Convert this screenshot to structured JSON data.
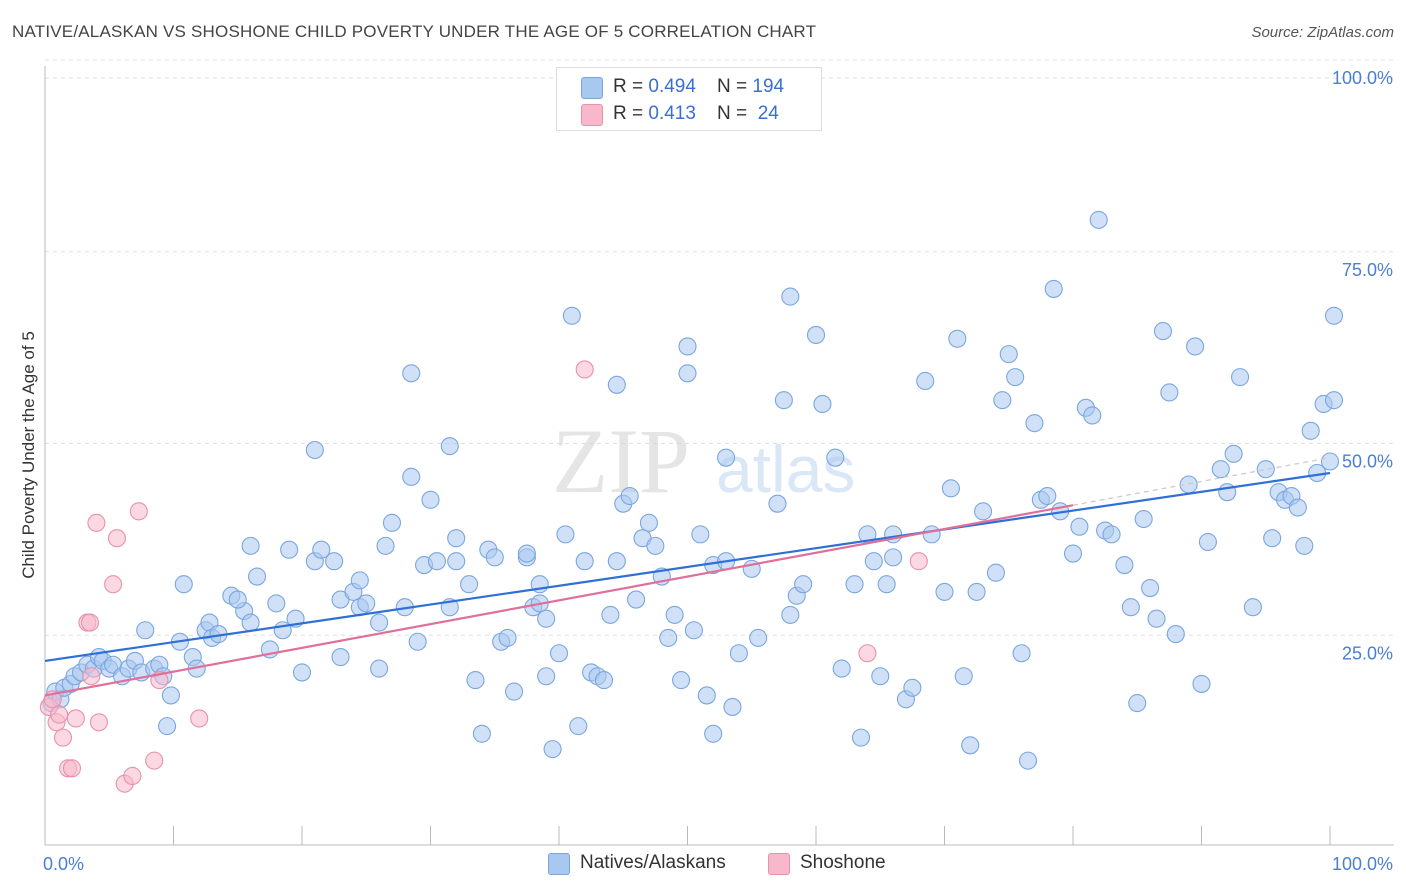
{
  "title": "NATIVE/ALASKAN VS SHOSHONE CHILD POVERTY UNDER THE AGE OF 5 CORRELATION CHART",
  "source": "Source: ZipAtlas.com",
  "watermark": {
    "zip": "ZIP",
    "atlas": "atlas"
  },
  "legend_top": [
    {
      "r_label": "R = ",
      "r_value": "0.494",
      "n_label": "N = ",
      "n_value": "194",
      "color": "#a9c8f0",
      "stroke": "#7aa6e0"
    },
    {
      "r_label": "R = ",
      "r_value": "0.413",
      "n_label": "N = ",
      "n_value": " 24",
      "color": "#f7b8cb",
      "stroke": "#e891ab"
    }
  ],
  "legend_bottom": [
    {
      "label": "Natives/Alaskans",
      "color": "#a9c8f0",
      "stroke": "#7aa6e0"
    },
    {
      "label": "Shoshone",
      "color": "#f7b8cb",
      "stroke": "#e891ab"
    }
  ],
  "chart_data": {
    "type": "scatter",
    "xlabel": "",
    "ylabel": "Child Poverty Under the Age of 5",
    "xlim": [
      0,
      100
    ],
    "ylim": [
      0,
      100
    ],
    "x_tick_labels": [
      {
        "value": 0,
        "label": "0.0%"
      },
      {
        "value": 100,
        "label": "100.0%"
      }
    ],
    "y_tick_labels": [
      {
        "value": 25,
        "label": "25.0%"
      },
      {
        "value": 50,
        "label": "50.0%"
      },
      {
        "value": 75,
        "label": "75.0%"
      },
      {
        "value": 100,
        "label": "100.0%"
      }
    ],
    "grid": true,
    "series": [
      {
        "name": "Natives/Alaskans",
        "color": "#a9c8f0",
        "stroke": "#7aa6e0",
        "trend": {
          "x": [
            0,
            100
          ],
          "y": [
            24.0,
            48.5
          ],
          "color": "#2f6fd6"
        },
        "points": [
          [
            0.5,
            18.5
          ],
          [
            0.8,
            20
          ],
          [
            1.2,
            19
          ],
          [
            1.5,
            20.5
          ],
          [
            2,
            21
          ],
          [
            2.3,
            22
          ],
          [
            2.8,
            22.5
          ],
          [
            3.3,
            23.5
          ],
          [
            3.8,
            23
          ],
          [
            4.2,
            24.5
          ],
          [
            4.5,
            24
          ],
          [
            5,
            23
          ],
          [
            5.3,
            23.5
          ],
          [
            6,
            22
          ],
          [
            6.5,
            23
          ],
          [
            7,
            24
          ],
          [
            7.5,
            22.5
          ],
          [
            7.8,
            28
          ],
          [
            8.5,
            23
          ],
          [
            8.9,
            23.5
          ],
          [
            9.2,
            22
          ],
          [
            9.5,
            15.5
          ],
          [
            9.8,
            19.5
          ],
          [
            10.5,
            26.5
          ],
          [
            10.8,
            34
          ],
          [
            11.5,
            24.5
          ],
          [
            11.8,
            23
          ],
          [
            12.5,
            28
          ],
          [
            12.8,
            29
          ],
          [
            13,
            27
          ],
          [
            13.5,
            27.5
          ],
          [
            14.5,
            32.5
          ],
          [
            15.5,
            30.5
          ],
          [
            15,
            32
          ],
          [
            16,
            29
          ],
          [
            16,
            39
          ],
          [
            16.5,
            35
          ],
          [
            17.5,
            25.5
          ],
          [
            18,
            31.5
          ],
          [
            18.5,
            28
          ],
          [
            19,
            38.5
          ],
          [
            19.5,
            29.5
          ],
          [
            20,
            22.5
          ],
          [
            21,
            37
          ],
          [
            21,
            51.5
          ],
          [
            21.5,
            38.5
          ],
          [
            22.5,
            37
          ],
          [
            23,
            32
          ],
          [
            23,
            24.5
          ],
          [
            24,
            33
          ],
          [
            24.5,
            31
          ],
          [
            24.5,
            34.5
          ],
          [
            25,
            31.5
          ],
          [
            26,
            23
          ],
          [
            26,
            29
          ],
          [
            26.5,
            39
          ],
          [
            27,
            42
          ],
          [
            28,
            31
          ],
          [
            28.5,
            61.5
          ],
          [
            28.5,
            48
          ],
          [
            29,
            26.5
          ],
          [
            29.5,
            36.5
          ],
          [
            30,
            45
          ],
          [
            30.5,
            37
          ],
          [
            31.5,
            52
          ],
          [
            31.5,
            31
          ],
          [
            32,
            40
          ],
          [
            32,
            37
          ],
          [
            33,
            34
          ],
          [
            33.5,
            21.5
          ],
          [
            34,
            14.5
          ],
          [
            34.5,
            38.5
          ],
          [
            35,
            37.5
          ],
          [
            35.5,
            26.5
          ],
          [
            36,
            27
          ],
          [
            36.5,
            20
          ],
          [
            37.5,
            37.5
          ],
          [
            37.5,
            38
          ],
          [
            38,
            31
          ],
          [
            38.5,
            34
          ],
          [
            38.5,
            31.5
          ],
          [
            39,
            29.5
          ],
          [
            39,
            22
          ],
          [
            39.5,
            12.5
          ],
          [
            40,
            25
          ],
          [
            40.5,
            40.5
          ],
          [
            41,
            69
          ],
          [
            41.5,
            15.5
          ],
          [
            42,
            37
          ],
          [
            42.5,
            22.5
          ],
          [
            43,
            22
          ],
          [
            43.5,
            21.5
          ],
          [
            44,
            30
          ],
          [
            44.5,
            37
          ],
          [
            44.5,
            60
          ],
          [
            45,
            44.5
          ],
          [
            45.5,
            45.5
          ],
          [
            46,
            32
          ],
          [
            46.5,
            40
          ],
          [
            47,
            42
          ],
          [
            47.5,
            39
          ],
          [
            48,
            35
          ],
          [
            48.5,
            27
          ],
          [
            49,
            30
          ],
          [
            49.5,
            21.5
          ],
          [
            50,
            61.5
          ],
          [
            50,
            65
          ],
          [
            50.5,
            28
          ],
          [
            51,
            40.5
          ],
          [
            51.5,
            19.5
          ],
          [
            52,
            14.5
          ],
          [
            52,
            36.5
          ],
          [
            53,
            50.5
          ],
          [
            53,
            37
          ],
          [
            53.5,
            18
          ],
          [
            54,
            25
          ],
          [
            55,
            36
          ],
          [
            55.5,
            27
          ],
          [
            57,
            44.5
          ],
          [
            57.5,
            58
          ],
          [
            58,
            71.5
          ],
          [
            58,
            30
          ],
          [
            58.5,
            32.5
          ],
          [
            59,
            34
          ],
          [
            60,
            66.5
          ],
          [
            60.5,
            57.5
          ],
          [
            61.5,
            50.5
          ],
          [
            62,
            23
          ],
          [
            63,
            34
          ],
          [
            63.5,
            14
          ],
          [
            64,
            40.5
          ],
          [
            64.5,
            37
          ],
          [
            65,
            22
          ],
          [
            65.5,
            34
          ],
          [
            66,
            37.5
          ],
          [
            66,
            40.5
          ],
          [
            67,
            19
          ],
          [
            67.5,
            20.5
          ],
          [
            68.5,
            60.5
          ],
          [
            69,
            40.5
          ],
          [
            70,
            33
          ],
          [
            70.5,
            46.5
          ],
          [
            71,
            66
          ],
          [
            71.5,
            22
          ],
          [
            72,
            13
          ],
          [
            72.5,
            33
          ],
          [
            73,
            43.5
          ],
          [
            74,
            35.5
          ],
          [
            74.5,
            58
          ],
          [
            75,
            64
          ],
          [
            75.5,
            61
          ],
          [
            76,
            25
          ],
          [
            76.5,
            11
          ],
          [
            77,
            55
          ],
          [
            77.5,
            45
          ],
          [
            78,
            45.5
          ],
          [
            78.5,
            72.5
          ],
          [
            79,
            43.5
          ],
          [
            80,
            38
          ],
          [
            80.5,
            41.5
          ],
          [
            81,
            57
          ],
          [
            81.5,
            56
          ],
          [
            82,
            81.5
          ],
          [
            82.5,
            41
          ],
          [
            83,
            40.5
          ],
          [
            84,
            36.5
          ],
          [
            84.5,
            31
          ],
          [
            85,
            18.5
          ],
          [
            85.5,
            42.5
          ],
          [
            86,
            33.5
          ],
          [
            86.5,
            29.5
          ],
          [
            87,
            67
          ],
          [
            87.5,
            59
          ],
          [
            88,
            27.5
          ],
          [
            89,
            47
          ],
          [
            89.5,
            65
          ],
          [
            90,
            21
          ],
          [
            90.5,
            39.5
          ],
          [
            91.5,
            49
          ],
          [
            92,
            46
          ],
          [
            92.5,
            51
          ],
          [
            93,
            61
          ],
          [
            94,
            31
          ],
          [
            95,
            49
          ],
          [
            95.5,
            40
          ],
          [
            96,
            46
          ],
          [
            96.5,
            45
          ],
          [
            97,
            45.5
          ],
          [
            97.5,
            44
          ],
          [
            98,
            39
          ],
          [
            98.5,
            54
          ],
          [
            99,
            48.5
          ],
          [
            99.5,
            57.5
          ],
          [
            100,
            50
          ],
          [
            100.5,
            58
          ],
          [
            101,
            69
          ]
        ]
      },
      {
        "name": "Shoshone",
        "color": "#f7b8cb",
        "stroke": "#e891ab",
        "trend": {
          "x": [
            0,
            100
          ],
          "y": [
            19.5,
            50.5
          ],
          "color": "#e0709a",
          "solid_until": 80
        },
        "points": [
          [
            0.3,
            18
          ],
          [
            0.6,
            19
          ],
          [
            0.9,
            16
          ],
          [
            1.1,
            17
          ],
          [
            1.4,
            14
          ],
          [
            1.8,
            10
          ],
          [
            2.1,
            10
          ],
          [
            2.4,
            16.5
          ],
          [
            3.3,
            29
          ],
          [
            3.6,
            22
          ],
          [
            4,
            42
          ],
          [
            4.2,
            16
          ],
          [
            5.3,
            34
          ],
          [
            5.6,
            40
          ],
          [
            6.2,
            8
          ],
          [
            6.8,
            9
          ],
          [
            7.3,
            43.5
          ],
          [
            8.5,
            11
          ],
          [
            8.9,
            21.5
          ],
          [
            12,
            16.5
          ],
          [
            42,
            62
          ],
          [
            68,
            37
          ],
          [
            64,
            25
          ],
          [
            3.5,
            29
          ]
        ]
      }
    ]
  }
}
